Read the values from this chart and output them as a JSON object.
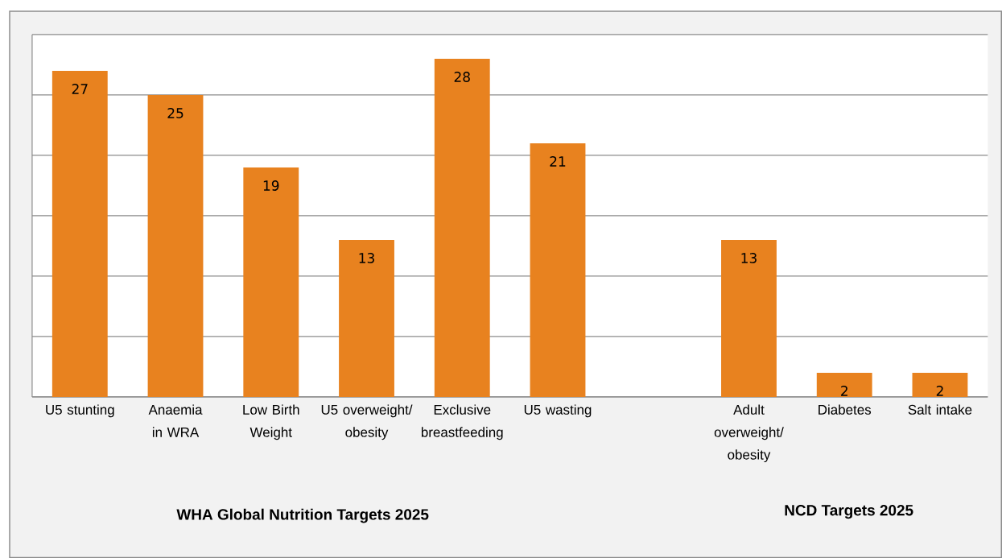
{
  "chart_data": {
    "type": "bar",
    "categories": [
      "U5 stunting",
      "Anaemia in WRA",
      "Low Birth Weight",
      "U5 overweight/ obesity",
      "Exclusive breastfeeding",
      "U5 wasting",
      null,
      "Adult overweight/ obesity",
      "Diabetes",
      "Salt intake"
    ],
    "values": [
      27,
      25,
      19,
      13,
      28,
      21,
      null,
      13,
      2,
      2
    ],
    "color": "#e8821f",
    "ylim": [
      0,
      30
    ],
    "yticks": [
      {
        "value": 0,
        "label": null
      },
      {
        "value": 5,
        "label": null
      },
      {
        "value": 10,
        "label": null
      },
      {
        "value": 15,
        "label": null
      },
      {
        "value": 20,
        "label": null
      },
      {
        "value": 25,
        "label": null
      },
      {
        "value": 30,
        "label": null
      }
    ],
    "grid": "y",
    "tick_labels": "x",
    "data_labels": true,
    "annotations": [
      "WHA Global Nutrition Targets 2025",
      "NCD Targets 2025"
    ]
  }
}
